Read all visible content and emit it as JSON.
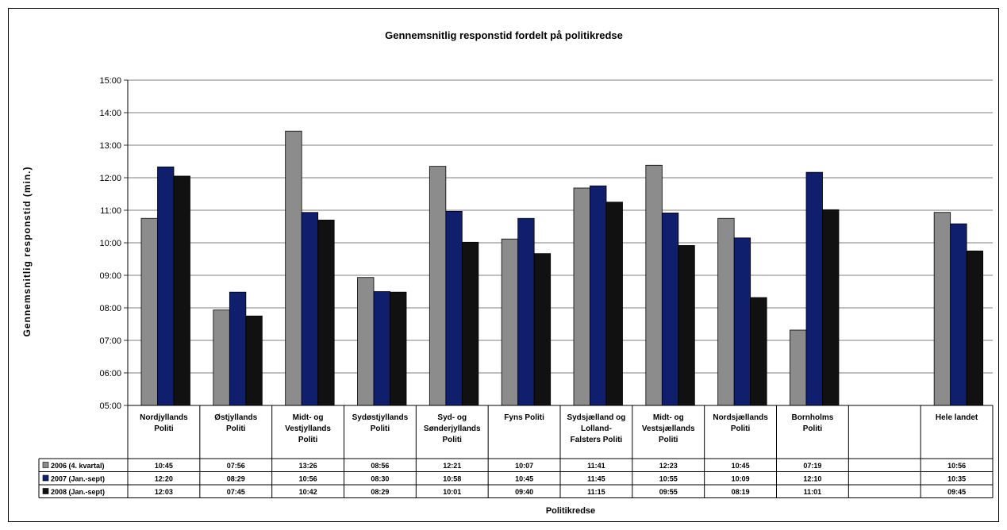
{
  "chart_data": {
    "type": "bar",
    "title": "Gennemsnitlig responstid fordelt på politikredse",
    "xlabel": "Politikredse",
    "ylabel": "Gennemsnitlig responstid (min.)",
    "y_unit": "minutes (mm:ss)",
    "ylim": [
      300,
      900
    ],
    "yticks": [
      "05:00",
      "06:00",
      "07:00",
      "08:00",
      "09:00",
      "10:00",
      "11:00",
      "12:00",
      "13:00",
      "14:00",
      "15:00"
    ],
    "grid": true,
    "legend": "data-table-left",
    "categories": [
      [
        "Nordjyllands",
        "Politi"
      ],
      [
        "Østjyllands",
        "Politi"
      ],
      [
        "Midt- og",
        "Vestjyllands",
        "Politi"
      ],
      [
        "Sydøstjyllands",
        "Politi"
      ],
      [
        "Syd- og",
        "Sønderjyllands",
        "Politi"
      ],
      [
        "Fyns Politi"
      ],
      [
        "Sydsjælland og",
        "Lolland-",
        "Falsters Politi"
      ],
      [
        "Midt- og",
        "Vestsjællands",
        "Politi"
      ],
      [
        "Nordsjællands",
        "Politi"
      ],
      [
        "Bornholms",
        "Politi"
      ],
      [
        ""
      ],
      [
        "Hele landet"
      ]
    ],
    "series": [
      {
        "name": "2006 (4. kvartal)",
        "color": "#8c8c8c",
        "labels": [
          "10:45",
          "07:56",
          "13:26",
          "08:56",
          "12:21",
          "10:07",
          "11:41",
          "12:23",
          "10:45",
          "07:19",
          "",
          "10:56"
        ],
        "values": [
          645,
          476,
          806,
          536,
          741,
          607,
          701,
          743,
          645,
          439,
          null,
          656
        ]
      },
      {
        "name": "2007 (Jan.-sept)",
        "color": "#0f1f6e",
        "labels": [
          "12:20",
          "08:29",
          "10:56",
          "08:30",
          "10:58",
          "10:45",
          "11:45",
          "10:55",
          "10:09",
          "12:10",
          "",
          "10:35"
        ],
        "values": [
          740,
          509,
          656,
          510,
          658,
          645,
          705,
          655,
          609,
          730,
          null,
          635
        ]
      },
      {
        "name": "2008 (Jan.-sept)",
        "color": "#111111",
        "labels": [
          "12:03",
          "07:45",
          "10:42",
          "08:29",
          "10:01",
          "09:40",
          "11:15",
          "09:55",
          "08:19",
          "11:01",
          "",
          "09:45"
        ],
        "values": [
          723,
          465,
          642,
          509,
          601,
          580,
          675,
          595,
          499,
          661,
          null,
          585
        ]
      }
    ]
  }
}
